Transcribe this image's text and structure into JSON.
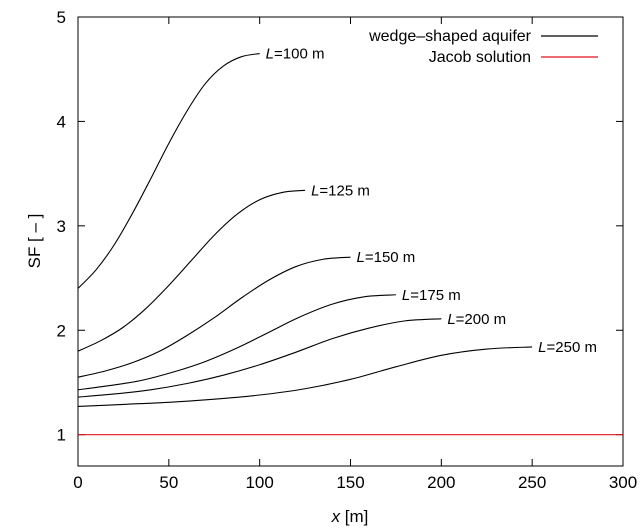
{
  "chart_data": {
    "type": "line",
    "xlabel_var": "x",
    "xlabel_unit": " [m]",
    "ylabel": "SF [ – ]",
    "xlim": [
      0,
      300
    ],
    "ylim": [
      0.7,
      5
    ],
    "xticks": [
      0,
      50,
      100,
      150,
      200,
      250,
      300
    ],
    "yticks": [
      1,
      2,
      3,
      4,
      5
    ],
    "legend": [
      {
        "label": "wedge–shaped aquifer",
        "color": "#000000"
      },
      {
        "label": "Jacob solution",
        "color": "#e0141e"
      }
    ],
    "series": [
      {
        "name": "L=100 m",
        "label_var": "L",
        "label_rest": "=100 m",
        "color": "#000000",
        "x": [
          0,
          10,
          20,
          30,
          40,
          50,
          60,
          70,
          80,
          90,
          100
        ],
        "y": [
          2.4,
          2.58,
          2.82,
          3.12,
          3.45,
          3.79,
          4.1,
          4.36,
          4.53,
          4.62,
          4.65
        ]
      },
      {
        "name": "L=125 m",
        "label_var": "L",
        "label_rest": "=125 m",
        "color": "#000000",
        "x": [
          0,
          12.5,
          25,
          37.5,
          50,
          62.5,
          75,
          87.5,
          100,
          112.5,
          125
        ],
        "y": [
          1.8,
          1.9,
          2.03,
          2.21,
          2.43,
          2.67,
          2.91,
          3.11,
          3.25,
          3.32,
          3.34
        ]
      },
      {
        "name": "L=150 m",
        "label_var": "L",
        "label_rest": "=150 m",
        "color": "#000000",
        "x": [
          0,
          15,
          30,
          45,
          60,
          75,
          90,
          105,
          120,
          135,
          150
        ],
        "y": [
          1.55,
          1.61,
          1.69,
          1.8,
          1.95,
          2.12,
          2.31,
          2.48,
          2.61,
          2.68,
          2.7
        ]
      },
      {
        "name": "L=175 m",
        "label_var": "L",
        "label_rest": "=175 m",
        "color": "#000000",
        "x": [
          0,
          17.5,
          35,
          52.5,
          70,
          87.5,
          105,
          122.5,
          140,
          157.5,
          175
        ],
        "y": [
          1.43,
          1.47,
          1.52,
          1.6,
          1.7,
          1.83,
          1.98,
          2.13,
          2.25,
          2.32,
          2.34
        ]
      },
      {
        "name": "L=200 m",
        "label_var": "L",
        "label_rest": "=200 m",
        "color": "#000000",
        "x": [
          0,
          20,
          40,
          60,
          80,
          100,
          120,
          140,
          160,
          180,
          200
        ],
        "y": [
          1.36,
          1.39,
          1.43,
          1.49,
          1.57,
          1.67,
          1.79,
          1.92,
          2.02,
          2.09,
          2.11
        ]
      },
      {
        "name": "L=250 m",
        "label_var": "L",
        "label_rest": "=250 m",
        "color": "#000000",
        "x": [
          0,
          25,
          50,
          75,
          100,
          125,
          150,
          175,
          200,
          225,
          250
        ],
        "y": [
          1.27,
          1.29,
          1.31,
          1.34,
          1.38,
          1.44,
          1.53,
          1.65,
          1.76,
          1.82,
          1.84
        ]
      },
      {
        "name": "Jacob solution",
        "color": "#e0141e",
        "x": [
          0,
          300
        ],
        "y": [
          1.0,
          1.0
        ]
      }
    ]
  }
}
